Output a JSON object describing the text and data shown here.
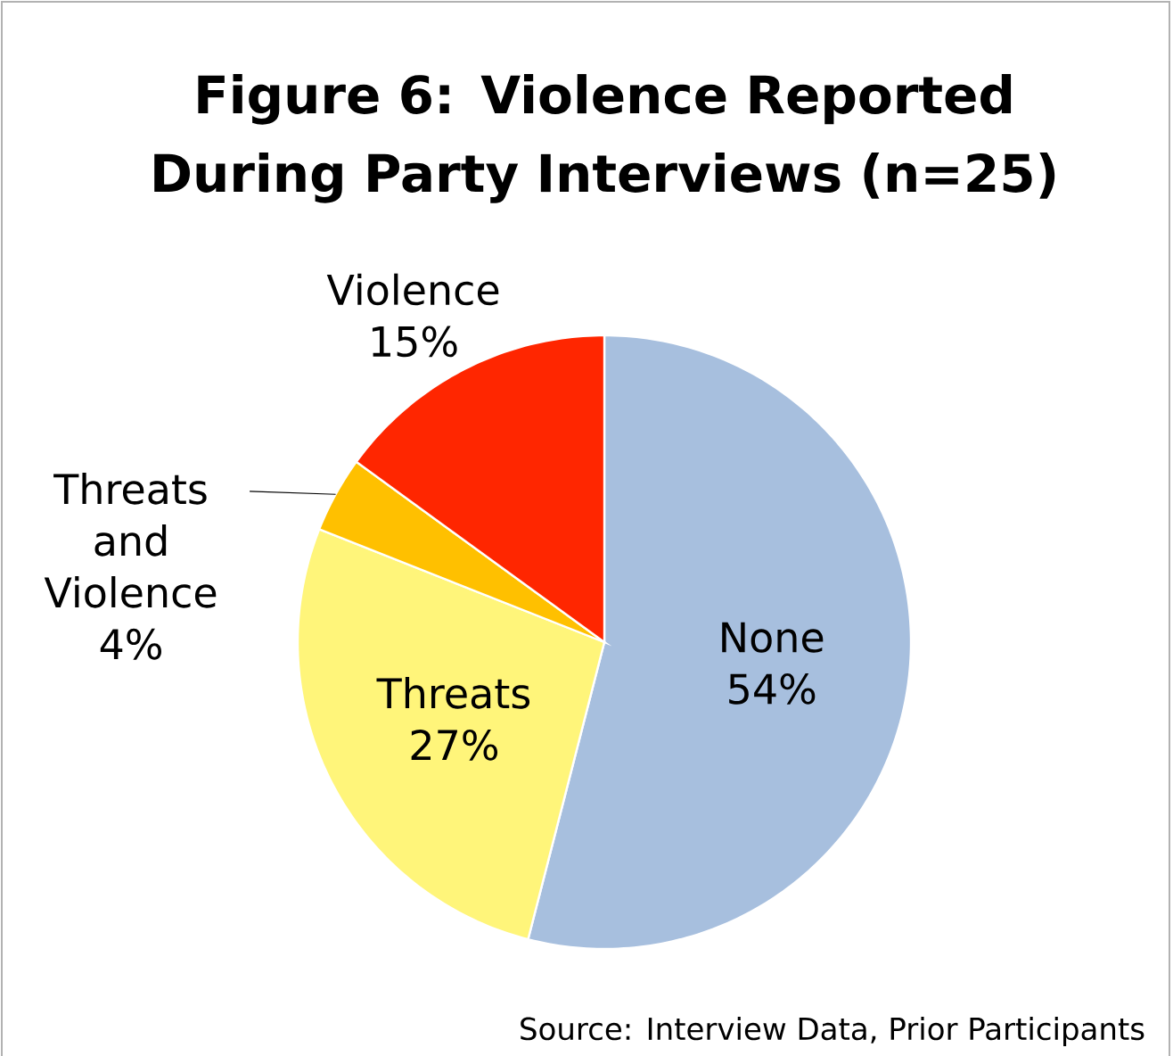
{
  "chart_data": {
    "type": "pie",
    "title": "Figure 6: Violence Reported During Party Interviews (n=25)",
    "categories": [
      "None",
      "Threats",
      "Threats and Violence",
      "Violence"
    ],
    "values": [
      54,
      27,
      4,
      15
    ],
    "colors": [
      "#a7bfde",
      "#fff57a",
      "#ffc000",
      "#ff2600"
    ],
    "value_labels": [
      "54%",
      "27%",
      "4%",
      "15%"
    ],
    "annotations": [
      "Source: Interview Data, Prior Participants"
    ]
  }
}
